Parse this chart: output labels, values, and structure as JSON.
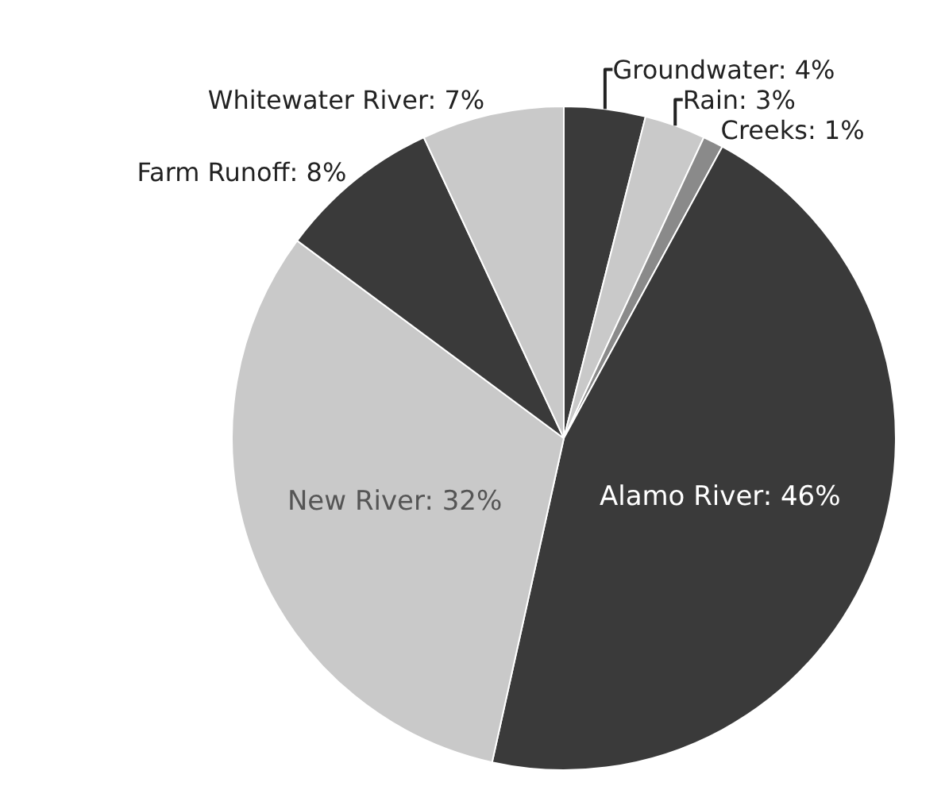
{
  "chart_data": {
    "type": "pie",
    "categories": [
      "Groundwater",
      "Rain",
      "Creeks",
      "Alamo River",
      "New River",
      "Farm Runoff",
      "Whitewater River"
    ],
    "values": [
      4,
      3,
      1,
      46,
      32,
      8,
      7
    ],
    "value_labels": [
      "4%",
      "3%",
      "1%",
      "46%",
      "32%",
      "8%",
      "7%"
    ],
    "colors": [
      "#3a3a3a",
      "#c9c9c9",
      "#8a8a8a",
      "#3a3a3a",
      "#c9c9c9",
      "#3a3a3a",
      "#c9c9c9"
    ],
    "legend": false
  }
}
